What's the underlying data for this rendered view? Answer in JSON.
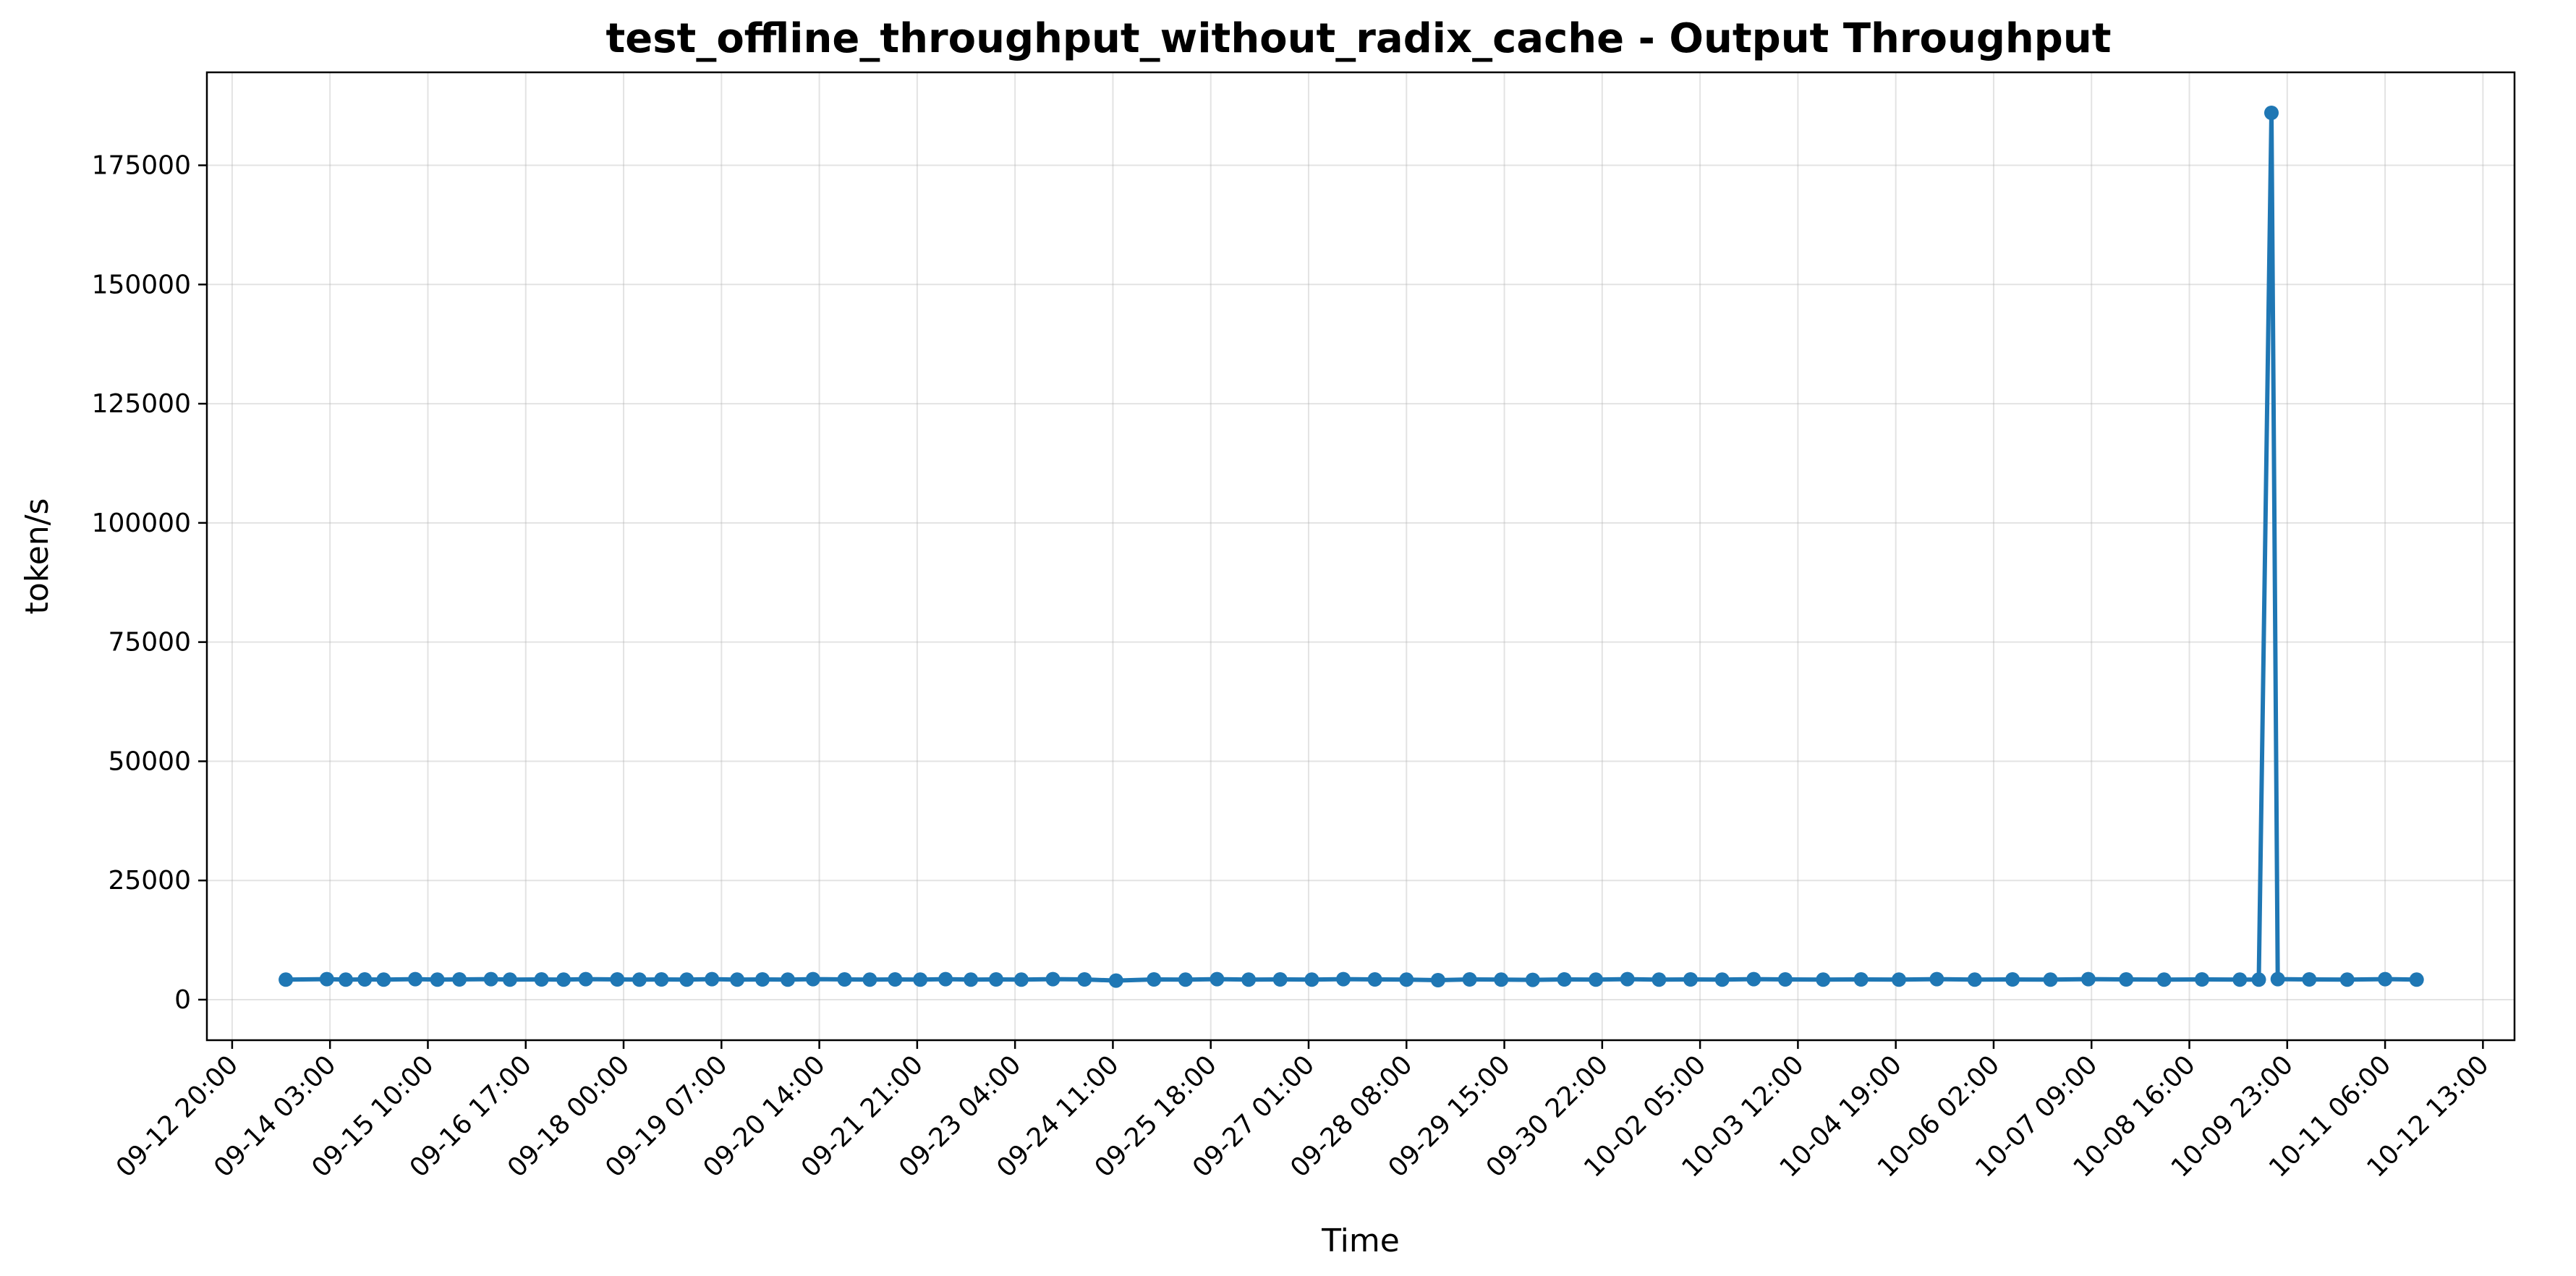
{
  "chart_data": {
    "type": "line",
    "title": "test_offline_throughput_without_radix_cache - Output Throughput",
    "xlabel": "Time",
    "ylabel": "token/s",
    "x_axis": {
      "kind": "time",
      "range": [
        "2025-09-12T12:00",
        "2025-10-12T23:00"
      ],
      "tick_labels": [
        "09-12 20:00",
        "09-14 03:00",
        "09-15 10:00",
        "09-16 17:00",
        "09-18 00:00",
        "09-19 07:00",
        "09-20 14:00",
        "09-21 21:00",
        "09-23 04:00",
        "09-24 11:00",
        "09-25 18:00",
        "09-27 01:00",
        "09-28 08:00",
        "09-29 15:00",
        "09-30 22:00",
        "10-02 05:00",
        "10-03 12:00",
        "10-04 19:00",
        "10-06 02:00",
        "10-07 09:00",
        "10-08 16:00",
        "10-09 23:00",
        "10-11 06:00",
        "10-12 13:00"
      ]
    },
    "y_axis": {
      "range": [
        -8500,
        194500
      ],
      "ticks": [
        0,
        25000,
        50000,
        75000,
        100000,
        125000,
        150000,
        175000
      ],
      "tick_labels": [
        "0",
        "25000",
        "50000",
        "75000",
        "100000",
        "125000",
        "150000",
        "175000"
      ]
    },
    "grid": true,
    "series": [
      {
        "color": "#1f77b4",
        "marker": "circle",
        "points": [
          {
            "x": "2025-09-13T13:00",
            "y": 4200
          },
          {
            "x": "2025-09-14T02:00",
            "y": 4300
          },
          {
            "x": "2025-09-14T08:00",
            "y": 4200
          },
          {
            "x": "2025-09-14T14:00",
            "y": 4250
          },
          {
            "x": "2025-09-14T20:00",
            "y": 4200
          },
          {
            "x": "2025-09-15T06:00",
            "y": 4300
          },
          {
            "x": "2025-09-15T13:00",
            "y": 4200
          },
          {
            "x": "2025-09-15T20:00",
            "y": 4250
          },
          {
            "x": "2025-09-16T06:00",
            "y": 4300
          },
          {
            "x": "2025-09-16T12:00",
            "y": 4200
          },
          {
            "x": "2025-09-16T22:00",
            "y": 4250
          },
          {
            "x": "2025-09-17T05:00",
            "y": 4200
          },
          {
            "x": "2025-09-17T12:00",
            "y": 4300
          },
          {
            "x": "2025-09-17T22:00",
            "y": 4250
          },
          {
            "x": "2025-09-18T05:00",
            "y": 4200
          },
          {
            "x": "2025-09-18T12:00",
            "y": 4250
          },
          {
            "x": "2025-09-18T20:00",
            "y": 4200
          },
          {
            "x": "2025-09-19T04:00",
            "y": 4300
          },
          {
            "x": "2025-09-19T12:00",
            "y": 4200
          },
          {
            "x": "2025-09-19T20:00",
            "y": 4250
          },
          {
            "x": "2025-09-20T04:00",
            "y": 4200
          },
          {
            "x": "2025-09-20T12:00",
            "y": 4300
          },
          {
            "x": "2025-09-20T22:00",
            "y": 4250
          },
          {
            "x": "2025-09-21T06:00",
            "y": 4200
          },
          {
            "x": "2025-09-21T14:00",
            "y": 4250
          },
          {
            "x": "2025-09-21T22:00",
            "y": 4200
          },
          {
            "x": "2025-09-22T06:00",
            "y": 4300
          },
          {
            "x": "2025-09-22T14:00",
            "y": 4200
          },
          {
            "x": "2025-09-22T22:00",
            "y": 4250
          },
          {
            "x": "2025-09-23T06:00",
            "y": 4200
          },
          {
            "x": "2025-09-23T16:00",
            "y": 4300
          },
          {
            "x": "2025-09-24T02:00",
            "y": 4250
          },
          {
            "x": "2025-09-24T12:00",
            "y": 4000
          },
          {
            "x": "2025-09-25T00:00",
            "y": 4250
          },
          {
            "x": "2025-09-25T10:00",
            "y": 4200
          },
          {
            "x": "2025-09-25T20:00",
            "y": 4300
          },
          {
            "x": "2025-09-26T06:00",
            "y": 4200
          },
          {
            "x": "2025-09-26T16:00",
            "y": 4250
          },
          {
            "x": "2025-09-27T02:00",
            "y": 4200
          },
          {
            "x": "2025-09-27T12:00",
            "y": 4300
          },
          {
            "x": "2025-09-27T22:00",
            "y": 4250
          },
          {
            "x": "2025-09-28T08:00",
            "y": 4200
          },
          {
            "x": "2025-09-28T18:00",
            "y": 4100
          },
          {
            "x": "2025-09-29T04:00",
            "y": 4250
          },
          {
            "x": "2025-09-29T14:00",
            "y": 4200
          },
          {
            "x": "2025-09-30T00:00",
            "y": 4150
          },
          {
            "x": "2025-09-30T10:00",
            "y": 4250
          },
          {
            "x": "2025-09-30T20:00",
            "y": 4200
          },
          {
            "x": "2025-10-01T06:00",
            "y": 4300
          },
          {
            "x": "2025-10-01T16:00",
            "y": 4200
          },
          {
            "x": "2025-10-02T02:00",
            "y": 4250
          },
          {
            "x": "2025-10-02T12:00",
            "y": 4200
          },
          {
            "x": "2025-10-02T22:00",
            "y": 4300
          },
          {
            "x": "2025-10-03T08:00",
            "y": 4250
          },
          {
            "x": "2025-10-03T20:00",
            "y": 4200
          },
          {
            "x": "2025-10-04T08:00",
            "y": 4250
          },
          {
            "x": "2025-10-04T20:00",
            "y": 4200
          },
          {
            "x": "2025-10-05T08:00",
            "y": 4300
          },
          {
            "x": "2025-10-05T20:00",
            "y": 4200
          },
          {
            "x": "2025-10-06T08:00",
            "y": 4250
          },
          {
            "x": "2025-10-06T20:00",
            "y": 4200
          },
          {
            "x": "2025-10-07T08:00",
            "y": 4300
          },
          {
            "x": "2025-10-07T20:00",
            "y": 4250
          },
          {
            "x": "2025-10-08T08:00",
            "y": 4200
          },
          {
            "x": "2025-10-08T20:00",
            "y": 4250
          },
          {
            "x": "2025-10-09T08:00",
            "y": 4200
          },
          {
            "x": "2025-10-09T14:00",
            "y": 4200
          },
          {
            "x": "2025-10-09T18:00",
            "y": 186000
          },
          {
            "x": "2025-10-09T20:00",
            "y": 4300
          },
          {
            "x": "2025-10-10T06:00",
            "y": 4250
          },
          {
            "x": "2025-10-10T18:00",
            "y": 4200
          },
          {
            "x": "2025-10-11T06:00",
            "y": 4300
          },
          {
            "x": "2025-10-11T16:00",
            "y": 4200
          }
        ]
      }
    ]
  }
}
